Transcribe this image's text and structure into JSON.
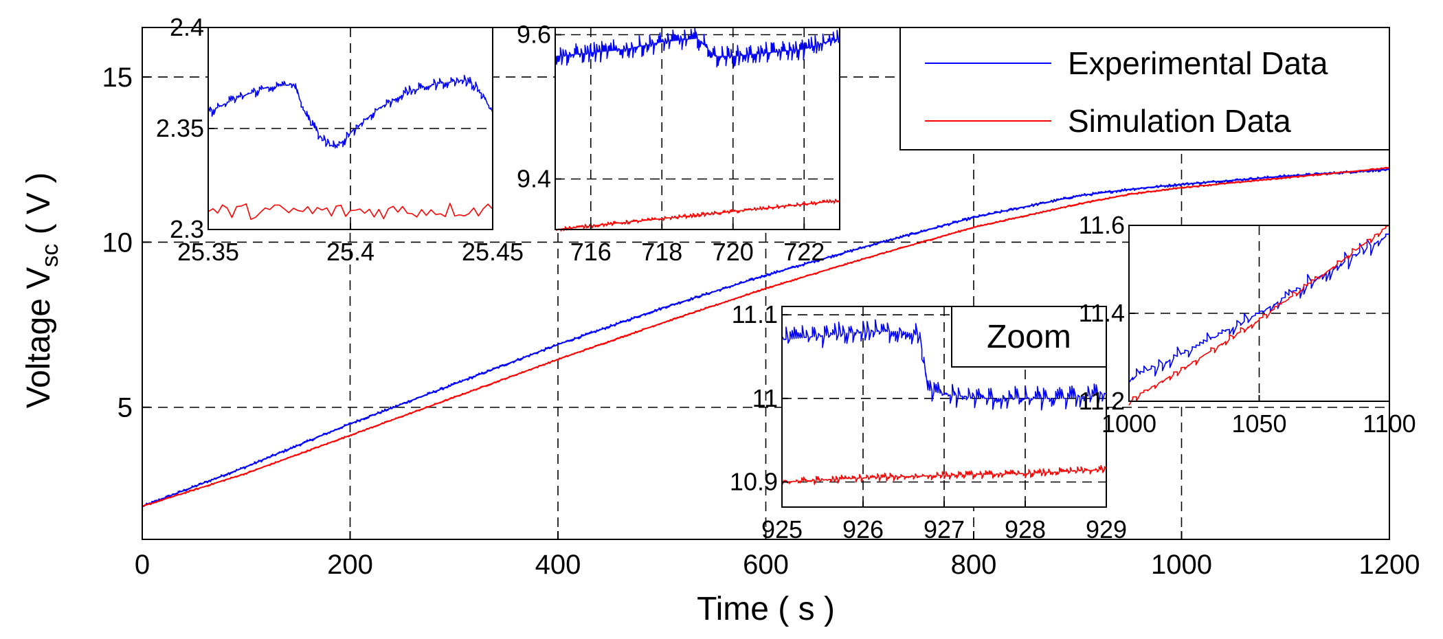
{
  "chart_data": [
    {
      "type": "line",
      "role": "main",
      "xlabel": "Time ( s )",
      "ylabel": "Voltage V",
      "ylabel_sub": "sc",
      "ylabel_suffix": " ( V )",
      "xlim": [
        0,
        1200
      ],
      "ylim": [
        1,
        16.5
      ],
      "xticks": [
        0,
        200,
        400,
        600,
        800,
        1000,
        1200
      ],
      "xtick_labels": [
        "0",
        "200",
        "400",
        "600",
        "800",
        "1000",
        "1200"
      ],
      "yticks": [
        5,
        10,
        15
      ],
      "ytick_labels": [
        "5",
        "10",
        "15"
      ],
      "grid": true,
      "legend_position": "top-right",
      "series": [
        {
          "name": "Experimental Data",
          "color": "#0000ff",
          "x": [
            0,
            100,
            200,
            300,
            400,
            500,
            600,
            700,
            800,
            900,
            950,
            1000,
            1100,
            1200
          ],
          "y": [
            2.0,
            3.2,
            4.5,
            5.7,
            6.9,
            8.0,
            9.0,
            9.9,
            10.75,
            11.4,
            11.6,
            11.75,
            12.0,
            12.2
          ]
        },
        {
          "name": "Simulation Data",
          "color": "#ff0000",
          "x": [
            0,
            100,
            200,
            300,
            400,
            500,
            600,
            700,
            800,
            900,
            950,
            1000,
            1100,
            1200
          ],
          "y": [
            2.0,
            3.0,
            4.15,
            5.3,
            6.45,
            7.55,
            8.6,
            9.55,
            10.45,
            11.15,
            11.45,
            11.65,
            11.95,
            12.25
          ]
        }
      ]
    },
    {
      "type": "line",
      "role": "inset",
      "xlim": [
        25.35,
        25.45
      ],
      "ylim": [
        2.3,
        2.4
      ],
      "xticks": [
        25.35,
        25.4,
        25.45
      ],
      "xtick_labels": [
        "25.35",
        "25.4",
        "25.45"
      ],
      "yticks": [
        2.3,
        2.35,
        2.4
      ],
      "ytick_labels": [
        "2.3",
        "2.35",
        "2.4"
      ],
      "series": [
        {
          "name": "Experimental Data",
          "x": [
            25.35,
            25.36,
            25.37,
            25.38,
            25.385,
            25.39,
            25.395,
            25.4,
            25.41,
            25.42,
            25.43,
            25.44,
            25.445,
            25.45
          ],
          "y": [
            2.358,
            2.365,
            2.37,
            2.372,
            2.355,
            2.345,
            2.34,
            2.348,
            2.36,
            2.368,
            2.372,
            2.374,
            2.37,
            2.358
          ]
        },
        {
          "name": "Simulation Data",
          "x": [
            25.35,
            25.4,
            25.45
          ],
          "y": [
            2.309,
            2.309,
            2.31
          ]
        }
      ]
    },
    {
      "type": "line",
      "role": "inset",
      "xlim": [
        715,
        723
      ],
      "ylim": [
        9.33,
        9.61
      ],
      "xticks": [
        716,
        718,
        720,
        722
      ],
      "xtick_labels": [
        "716",
        "718",
        "720",
        "722"
      ],
      "yticks": [
        9.4,
        9.6
      ],
      "ytick_labels": [
        "9.4",
        "9.6"
      ],
      "series": [
        {
          "name": "Experimental Data",
          "x": [
            715,
            716,
            717,
            718,
            719,
            719.5,
            720,
            721,
            722,
            723
          ],
          "y": [
            9.57,
            9.575,
            9.58,
            9.59,
            9.595,
            9.57,
            9.57,
            9.575,
            9.58,
            9.595
          ]
        },
        {
          "name": "Simulation Data",
          "x": [
            715,
            717,
            719,
            721,
            723
          ],
          "y": [
            9.33,
            9.34,
            9.35,
            9.36,
            9.37
          ]
        }
      ]
    },
    {
      "type": "line",
      "role": "inset",
      "xlim": [
        925,
        929
      ],
      "ylim": [
        10.87,
        11.11
      ],
      "xticks": [
        925,
        926,
        927,
        928,
        929
      ],
      "xtick_labels": [
        "925",
        "926",
        "927",
        "928",
        "929"
      ],
      "yticks": [
        10.9,
        11,
        11.1
      ],
      "ytick_labels": [
        "10.9",
        "11",
        "11.1"
      ],
      "annotation": "Zoom",
      "series": [
        {
          "name": "Experimental Data",
          "x": [
            925,
            925.5,
            926,
            926.5,
            926.7,
            926.8,
            927,
            927.5,
            928,
            928.5,
            929
          ],
          "y": [
            11.07,
            11.075,
            11.08,
            11.08,
            11.075,
            11.01,
            11.005,
            11.0,
            11.0,
            11.0,
            11.005
          ]
        },
        {
          "name": "Simulation Data",
          "x": [
            925,
            926,
            927,
            928,
            929
          ],
          "y": [
            10.9,
            10.905,
            10.908,
            10.91,
            10.915
          ]
        }
      ]
    },
    {
      "type": "line",
      "role": "inset",
      "xlim": [
        1000,
        1100
      ],
      "ylim": [
        11.2,
        11.6
      ],
      "xticks": [
        1000,
        1050,
        1100
      ],
      "xtick_labels": [
        "1000",
        "1050",
        "1100"
      ],
      "yticks": [
        11.2,
        11.4,
        11.6
      ],
      "ytick_labels": [
        "11.2",
        "11.4",
        "11.6"
      ],
      "series": [
        {
          "name": "Experimental Data",
          "x": [
            1000,
            1025,
            1050,
            1075,
            1100
          ],
          "y": [
            11.25,
            11.32,
            11.4,
            11.49,
            11.58
          ]
        },
        {
          "name": "Simulation Data",
          "x": [
            1000,
            1025,
            1050,
            1075,
            1100
          ],
          "y": [
            11.2,
            11.29,
            11.385,
            11.49,
            11.6
          ]
        }
      ]
    }
  ]
}
